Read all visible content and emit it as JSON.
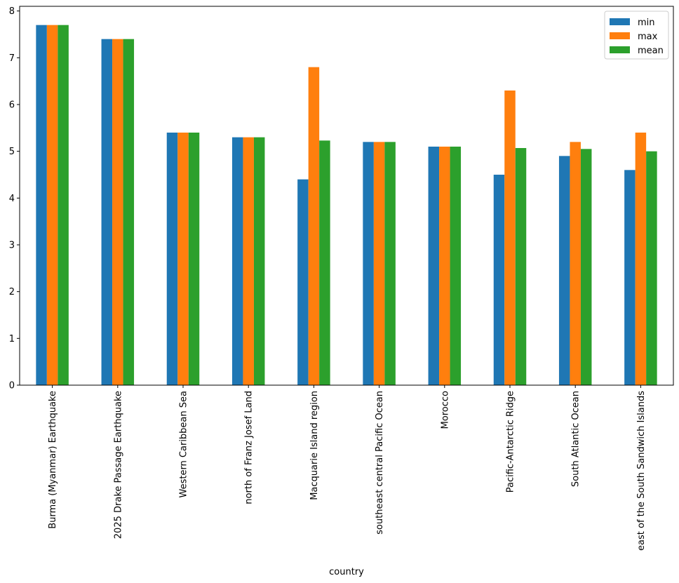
{
  "chart_data": {
    "type": "bar",
    "title": "",
    "xlabel": "country",
    "ylabel": "",
    "ylim": [
      0,
      8.1
    ],
    "yticks": [
      0,
      1,
      2,
      3,
      4,
      5,
      6,
      7,
      8
    ],
    "grid": false,
    "legend_position": "top-right",
    "categories": [
      "Burma (Myanmar) Earthquake",
      "2025 Drake Passage Earthquake",
      "Western Caribbean Sea",
      "north of Franz Josef Land",
      "Macquarie Island region",
      "southeast central Pacific Ocean",
      "Morocco",
      "Pacific-Antarctic Ridge",
      "South Atlantic Ocean",
      "east of the South Sandwich Islands"
    ],
    "series": [
      {
        "name": "min",
        "color": "#1f77b4",
        "values": [
          7.7,
          7.4,
          5.4,
          5.3,
          4.4,
          5.2,
          5.1,
          4.5,
          4.9,
          4.6
        ]
      },
      {
        "name": "max",
        "color": "#ff7f0e",
        "values": [
          7.7,
          7.4,
          5.4,
          5.3,
          6.8,
          5.2,
          5.1,
          6.3,
          5.2,
          5.4
        ]
      },
      {
        "name": "mean",
        "color": "#2ca02c",
        "values": [
          7.7,
          7.4,
          5.4,
          5.3,
          5.23,
          5.2,
          5.1,
          5.07,
          5.05,
          5.0
        ]
      }
    ]
  }
}
